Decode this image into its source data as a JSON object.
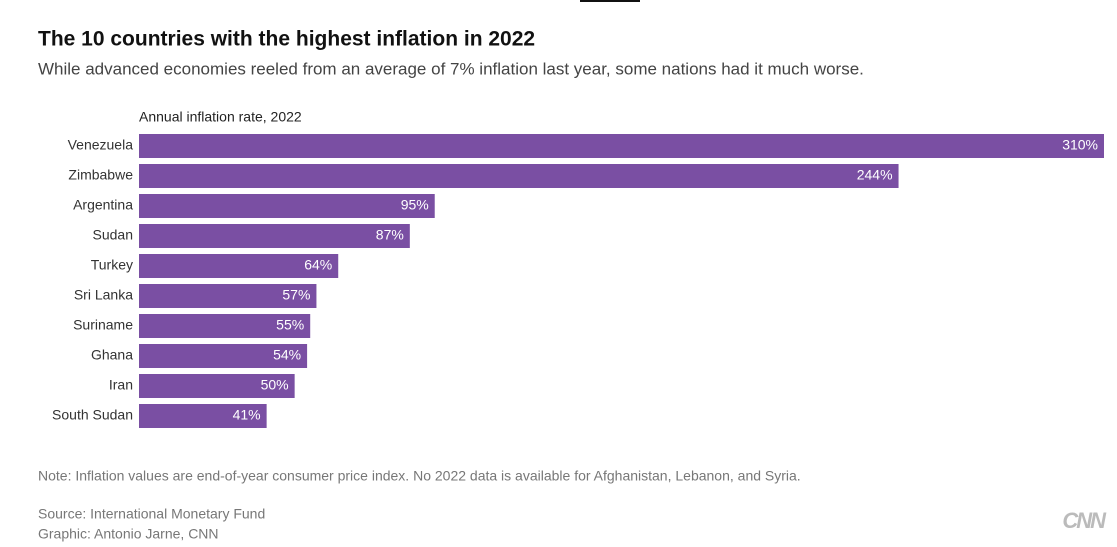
{
  "chart_data": {
    "type": "bar",
    "orientation": "horizontal",
    "title": "The 10 countries with the highest inflation in 2022",
    "subtitle": "While advanced economies reeled from an average of 7% inflation last year, some nations had it much worse.",
    "axis_label": "Annual inflation rate, 2022",
    "categories": [
      "Venezuela",
      "Zimbabwe",
      "Argentina",
      "Sudan",
      "Turkey",
      "Sri Lanka",
      "Suriname",
      "Ghana",
      "Iran",
      "South Sudan"
    ],
    "values": [
      310,
      244,
      95,
      87,
      64,
      57,
      55,
      54,
      50,
      41
    ],
    "value_labels": [
      "310%",
      "244%",
      "95%",
      "87%",
      "64%",
      "57%",
      "55%",
      "54%",
      "50%",
      "41%"
    ],
    "color": "#7a4fa3",
    "note": "Note: Inflation values are end-of-year consumer price index. No 2022 data is available for Afghanistan, Lebanon, and Syria.",
    "source": "Source: International Monetary Fund",
    "credit": "Graphic: Antonio Jarne, CNN",
    "logo": "CNN"
  }
}
